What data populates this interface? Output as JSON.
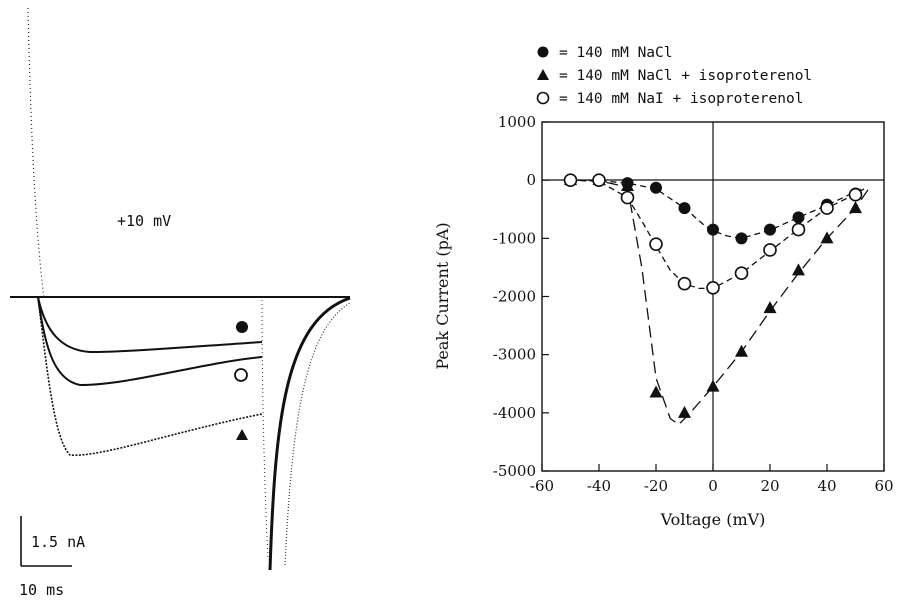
{
  "left_panel": {
    "voltage_label": "+10 mV",
    "scale_current": "1.5 nA",
    "scale_time": "10 ms",
    "trace_markers": [
      "filled-circle",
      "open-circle",
      "filled-triangle"
    ]
  },
  "chart_data": {
    "type": "scatter",
    "title": "",
    "xlabel": "Voltage (mV)",
    "ylabel": "Peak Current (pA)",
    "xlim": [
      -60,
      60
    ],
    "ylim": [
      -5000,
      1000
    ],
    "xticks": [
      -60,
      -40,
      -20,
      0,
      20,
      40,
      60
    ],
    "yticks": [
      1000,
      0,
      -1000,
      -2000,
      -3000,
      -4000,
      -5000
    ],
    "grid": false,
    "legend_position": "top",
    "series": [
      {
        "name": "= 140 mM NaCl",
        "marker": "filled-circle",
        "line_style": "short-dash",
        "x": [
          -50,
          -40,
          -30,
          -20,
          -10,
          0,
          10,
          20,
          30,
          40,
          50
        ],
        "y": [
          0,
          0,
          -50,
          -130,
          -480,
          -850,
          -1000,
          -850,
          -640,
          -420,
          -230
        ],
        "fit": [
          [
            -50,
            0
          ],
          [
            -40,
            -10
          ],
          [
            -30,
            -50
          ],
          [
            -20,
            -150
          ],
          [
            -10,
            -480
          ],
          [
            -3,
            -780
          ],
          [
            0,
            -870
          ],
          [
            5,
            -960
          ],
          [
            10,
            -1000
          ],
          [
            20,
            -860
          ],
          [
            30,
            -640
          ],
          [
            40,
            -430
          ],
          [
            50,
            -200
          ],
          [
            52,
            -150
          ]
        ]
      },
      {
        "name": "= 140 mM NaCl + isoproterenol",
        "marker": "filled-triangle",
        "line_style": "long-dash",
        "x": [
          -50,
          -40,
          -30,
          -20,
          -10,
          0,
          10,
          20,
          30,
          40,
          50
        ],
        "y": [
          0,
          0,
          -100,
          -3650,
          -4000,
          -3550,
          -2950,
          -2200,
          -1550,
          -1000,
          -480
        ],
        "fit": [
          [
            -50,
            0
          ],
          [
            -40,
            -10
          ],
          [
            -30,
            -120
          ],
          [
            -25,
            -1500
          ],
          [
            -20,
            -3400
          ],
          [
            -15,
            -4100
          ],
          [
            -12,
            -4200
          ],
          [
            -8,
            -4000
          ],
          [
            0,
            -3550
          ],
          [
            10,
            -2950
          ],
          [
            20,
            -2250
          ],
          [
            30,
            -1600
          ],
          [
            40,
            -1000
          ],
          [
            50,
            -480
          ],
          [
            55,
            -120
          ]
        ]
      },
      {
        "name": "= 140 mM NaI + isoproterenol",
        "marker": "open-circle",
        "line_style": "short-dash",
        "x": [
          -50,
          -40,
          -30,
          -20,
          -10,
          0,
          10,
          20,
          30,
          40,
          50
        ],
        "y": [
          0,
          0,
          -300,
          -1100,
          -1780,
          -1850,
          -1600,
          -1200,
          -850,
          -480,
          -250
        ],
        "fit": [
          [
            -50,
            0
          ],
          [
            -40,
            -20
          ],
          [
            -30,
            -300
          ],
          [
            -25,
            -700
          ],
          [
            -20,
            -1130
          ],
          [
            -15,
            -1550
          ],
          [
            -10,
            -1780
          ],
          [
            -5,
            -1860
          ],
          [
            0,
            -1860
          ],
          [
            10,
            -1600
          ],
          [
            20,
            -1220
          ],
          [
            30,
            -840
          ],
          [
            40,
            -480
          ],
          [
            50,
            -240
          ],
          [
            53,
            -150
          ]
        ]
      }
    ]
  }
}
